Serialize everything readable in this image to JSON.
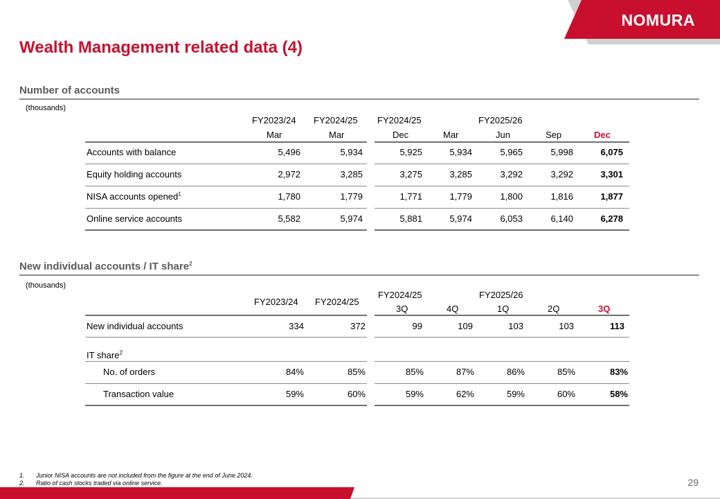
{
  "brand": {
    "logo_text": "NOMURA",
    "accent": "#c8102e",
    "grey": "#d0d0d0"
  },
  "title": "Wealth Management related data (4)",
  "section1": {
    "title": "Number of accounts",
    "units": "(thousands)",
    "fy_headers": [
      "FY2023/24",
      "FY2024/25",
      "FY2024/25",
      "FY2025/26"
    ],
    "sub_headers": [
      "Mar",
      "Mar",
      "Dec",
      "Mar",
      "Jun",
      "Sep",
      "Dec"
    ],
    "rows": [
      {
        "label": "Accounts with balance",
        "sup": "",
        "values": [
          "5,496",
          "5,934",
          "5,925",
          "5,934",
          "5,965",
          "5,998",
          "6,075"
        ]
      },
      {
        "label": "Equity holding accounts",
        "sup": "",
        "values": [
          "2,972",
          "3,285",
          "3,275",
          "3,285",
          "3,292",
          "3,292",
          "3,301"
        ]
      },
      {
        "label": "NISA accounts opened",
        "sup": "1",
        "values": [
          "1,780",
          "1,779",
          "1,771",
          "1,779",
          "1,800",
          "1,816",
          "1,877"
        ]
      },
      {
        "label": "Online service accounts",
        "sup": "",
        "values": [
          "5,582",
          "5,974",
          "5,881",
          "5,974",
          "6,053",
          "6,140",
          "6,278"
        ]
      }
    ]
  },
  "section2": {
    "title": "New individual accounts / IT share",
    "title_sup": "2",
    "units": "(thousands)",
    "fy_headers": [
      "FY2023/24",
      "FY2024/25",
      "FY2024/25",
      "FY2025/26"
    ],
    "sub_headers": [
      "3Q",
      "4Q",
      "1Q",
      "2Q",
      "3Q"
    ],
    "rows": [
      {
        "label": "New individual accounts",
        "values": [
          "334",
          "372",
          "99",
          "109",
          "103",
          "103",
          "113"
        ]
      },
      {
        "label": "No. of orders",
        "values": [
          "84%",
          "85%",
          "85%",
          "87%",
          "86%",
          "85%",
          "83%"
        ]
      },
      {
        "label": "Transaction value",
        "values": [
          "59%",
          "60%",
          "59%",
          "62%",
          "59%",
          "60%",
          "58%"
        ]
      }
    ],
    "it_share_label": "IT share",
    "it_share_sup": "2"
  },
  "footnotes": [
    {
      "num": "1.",
      "text": "Junior NISA accounts are not included from the figure at the end of June 2024."
    },
    {
      "num": "2.",
      "text": "Ratio of cash stocks traded via online service."
    }
  ],
  "page_number": "29"
}
